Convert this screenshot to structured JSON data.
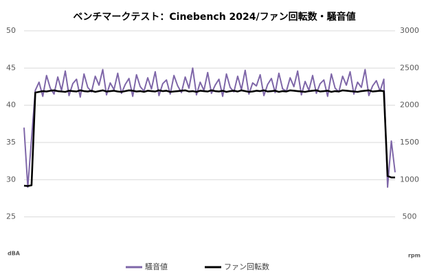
{
  "chart_data": {
    "type": "line",
    "title": "ベンチマークテスト：Cinebench 2024/ファン回転数・騒音値",
    "ylabel": "dBA",
    "y2label": "rpm",
    "ylim": [
      20,
      50
    ],
    "yticks": [
      25,
      30,
      35,
      40,
      45,
      50
    ],
    "y2lim": [
      0,
      3000
    ],
    "y2ticks": [
      500,
      1000,
      1500,
      2000,
      2500,
      3000
    ],
    "grid": true,
    "legend": "bottom",
    "series": [
      {
        "name": "騒音値",
        "color": "#7e66a8",
        "values": [
          37.0,
          29.0,
          35.5,
          42.0,
          43.1,
          41.2,
          44.0,
          42.3,
          41.5,
          43.8,
          42.0,
          44.6,
          41.3,
          42.9,
          43.5,
          41.1,
          44.2,
          42.4,
          41.8,
          43.9,
          42.7,
          44.8,
          41.4,
          43.0,
          42.1,
          44.3,
          41.6,
          42.8,
          43.6,
          41.2,
          44.1,
          42.5,
          41.9,
          43.7,
          42.2,
          44.5,
          41.3,
          42.9,
          43.4,
          41.5,
          44.0,
          42.6,
          41.7,
          43.8,
          42.3,
          45.0,
          41.4,
          43.1,
          42.0,
          44.4,
          41.6,
          42.7,
          43.5,
          41.2,
          44.2,
          42.4,
          41.8,
          43.9,
          42.1,
          44.7,
          41.5,
          43.0,
          42.6,
          44.1,
          41.3,
          42.8,
          43.6,
          41.7,
          44.3,
          42.2,
          41.9,
          43.7,
          42.5,
          44.6,
          41.4,
          43.2,
          42.0,
          44.0,
          41.6,
          42.9,
          43.4,
          41.2,
          44.2,
          42.3,
          41.8,
          43.9,
          42.7,
          44.5,
          41.5,
          43.1,
          42.4,
          44.8,
          41.3,
          42.6,
          43.3,
          41.9,
          43.5,
          29.0,
          35.2,
          31.0
        ]
      },
      {
        "name": "ファン回転数",
        "color": "#000000",
        "axis": "y2",
        "values": [
          920,
          915,
          925,
          2170,
          2180,
          2190,
          2185,
          2195,
          2200,
          2190,
          2185,
          2180,
          2195,
          2190,
          2185,
          2200,
          2190,
          2185,
          2195,
          2180,
          2190,
          2200,
          2185,
          2190,
          2195,
          2185,
          2180,
          2190,
          2200,
          2195,
          2185,
          2190,
          2180,
          2195,
          2190,
          2185,
          2200,
          2190,
          2195,
          2180,
          2185,
          2190,
          2195,
          2200,
          2185,
          2190,
          2180,
          2195,
          2190,
          2185,
          2200,
          2190,
          2185,
          2195,
          2180,
          2190,
          2195,
          2185,
          2200,
          2190,
          2180,
          2185,
          2195,
          2190,
          2200,
          2185,
          2190,
          2195,
          2180,
          2190,
          2185,
          2200,
          2195,
          2190,
          2185,
          2180,
          2190,
          2195,
          2200,
          2185,
          2190,
          2195,
          2180,
          2190,
          2185,
          2200,
          2195,
          2190,
          2185,
          2180,
          2190,
          2195,
          2200,
          2185,
          2190,
          2195,
          2190,
          1050,
          1030,
          1030
        ]
      }
    ]
  }
}
